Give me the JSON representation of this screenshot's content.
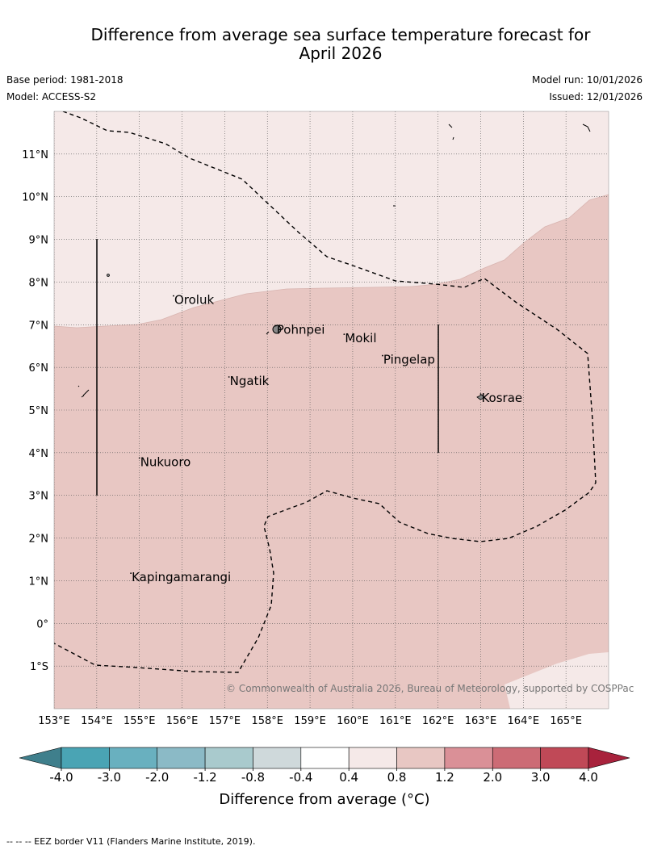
{
  "title": {
    "line1": "Difference from average sea surface temperature forecast for",
    "line2": "April 2026"
  },
  "meta": {
    "base_period": "Base period: 1981-2018",
    "model": "Model: ACCESS-S2",
    "model_run": "Model run: 10/01/2026",
    "issued": "Issued: 12/01/2026"
  },
  "map": {
    "lat_labels": [
      "11°N",
      "10°N",
      "9°N",
      "8°N",
      "7°N",
      "6°N",
      "5°N",
      "4°N",
      "3°N",
      "2°N",
      "1°N",
      "0°",
      "1°S"
    ],
    "lat_values": [
      11,
      10,
      9,
      8,
      7,
      6,
      5,
      4,
      3,
      2,
      1,
      0,
      -1
    ],
    "lon_labels": [
      "153°E",
      "154°E",
      "155°E",
      "156°E",
      "157°E",
      "158°E",
      "159°E",
      "160°E",
      "161°E",
      "162°E",
      "163°E",
      "164°E",
      "165°E"
    ],
    "lon_values": [
      153,
      154,
      155,
      156,
      157,
      158,
      159,
      160,
      161,
      162,
      163,
      164,
      165
    ],
    "places": [
      {
        "name": "Oroluk",
        "lon": 155.8,
        "lat": 7.6
      },
      {
        "name": "Pohnpei",
        "lon": 158.2,
        "lat": 6.9
      },
      {
        "name": "Mokil",
        "lon": 159.8,
        "lat": 6.7
      },
      {
        "name": "Pingelap",
        "lon": 160.7,
        "lat": 6.2
      },
      {
        "name": "Ngatik",
        "lon": 157.1,
        "lat": 5.7
      },
      {
        "name": "Kosrae",
        "lon": 163.0,
        "lat": 5.3
      },
      {
        "name": "Nukuoro",
        "lon": 155.0,
        "lat": 3.8
      },
      {
        "name": "Kapingamarangi",
        "lon": 154.8,
        "lat": 1.1
      }
    ],
    "copyright": "© Commonwealth of Australia 2026, Bureau of Meteorology, supported by COSPPac"
  },
  "colorbar": {
    "tick_labels": [
      "-4.0",
      "-3.0",
      "-2.0",
      "-1.2",
      "-0.8",
      "-0.4",
      "0.4",
      "0.8",
      "1.2",
      "2.0",
      "3.0",
      "4.0"
    ],
    "colors": [
      "#3f7f8c",
      "#4aa4b4",
      "#69b0bf",
      "#8bbac6",
      "#a9cacd",
      "#cfd9db",
      "#ffffff",
      "#f5e9e8",
      "#e8c7c3",
      "#da9097",
      "#cc6b75",
      "#c04957",
      "#a8223c"
    ],
    "title": "Difference from average (°C)"
  },
  "chart_data": {
    "type": "map",
    "title": "Difference from average sea surface temperature forecast for April 2026",
    "extent": {
      "lon": [
        153,
        166
      ],
      "lat": [
        -2,
        12
      ]
    },
    "regions": [
      {
        "category": "0.4 to 0.8",
        "color": "#f5e9e8",
        "description": "north of ~8°N"
      },
      {
        "category": "0.8 to 1.2",
        "color": "#e8c7c3",
        "description": "most of domain"
      },
      {
        "category": "0.4 to 0.8",
        "color": "#f5e9e8",
        "description": "south-east corner"
      }
    ]
  },
  "footer": {
    "eez_note": "--  --  -- EEZ border V11 (Flanders Marine Institute, 2019)."
  }
}
